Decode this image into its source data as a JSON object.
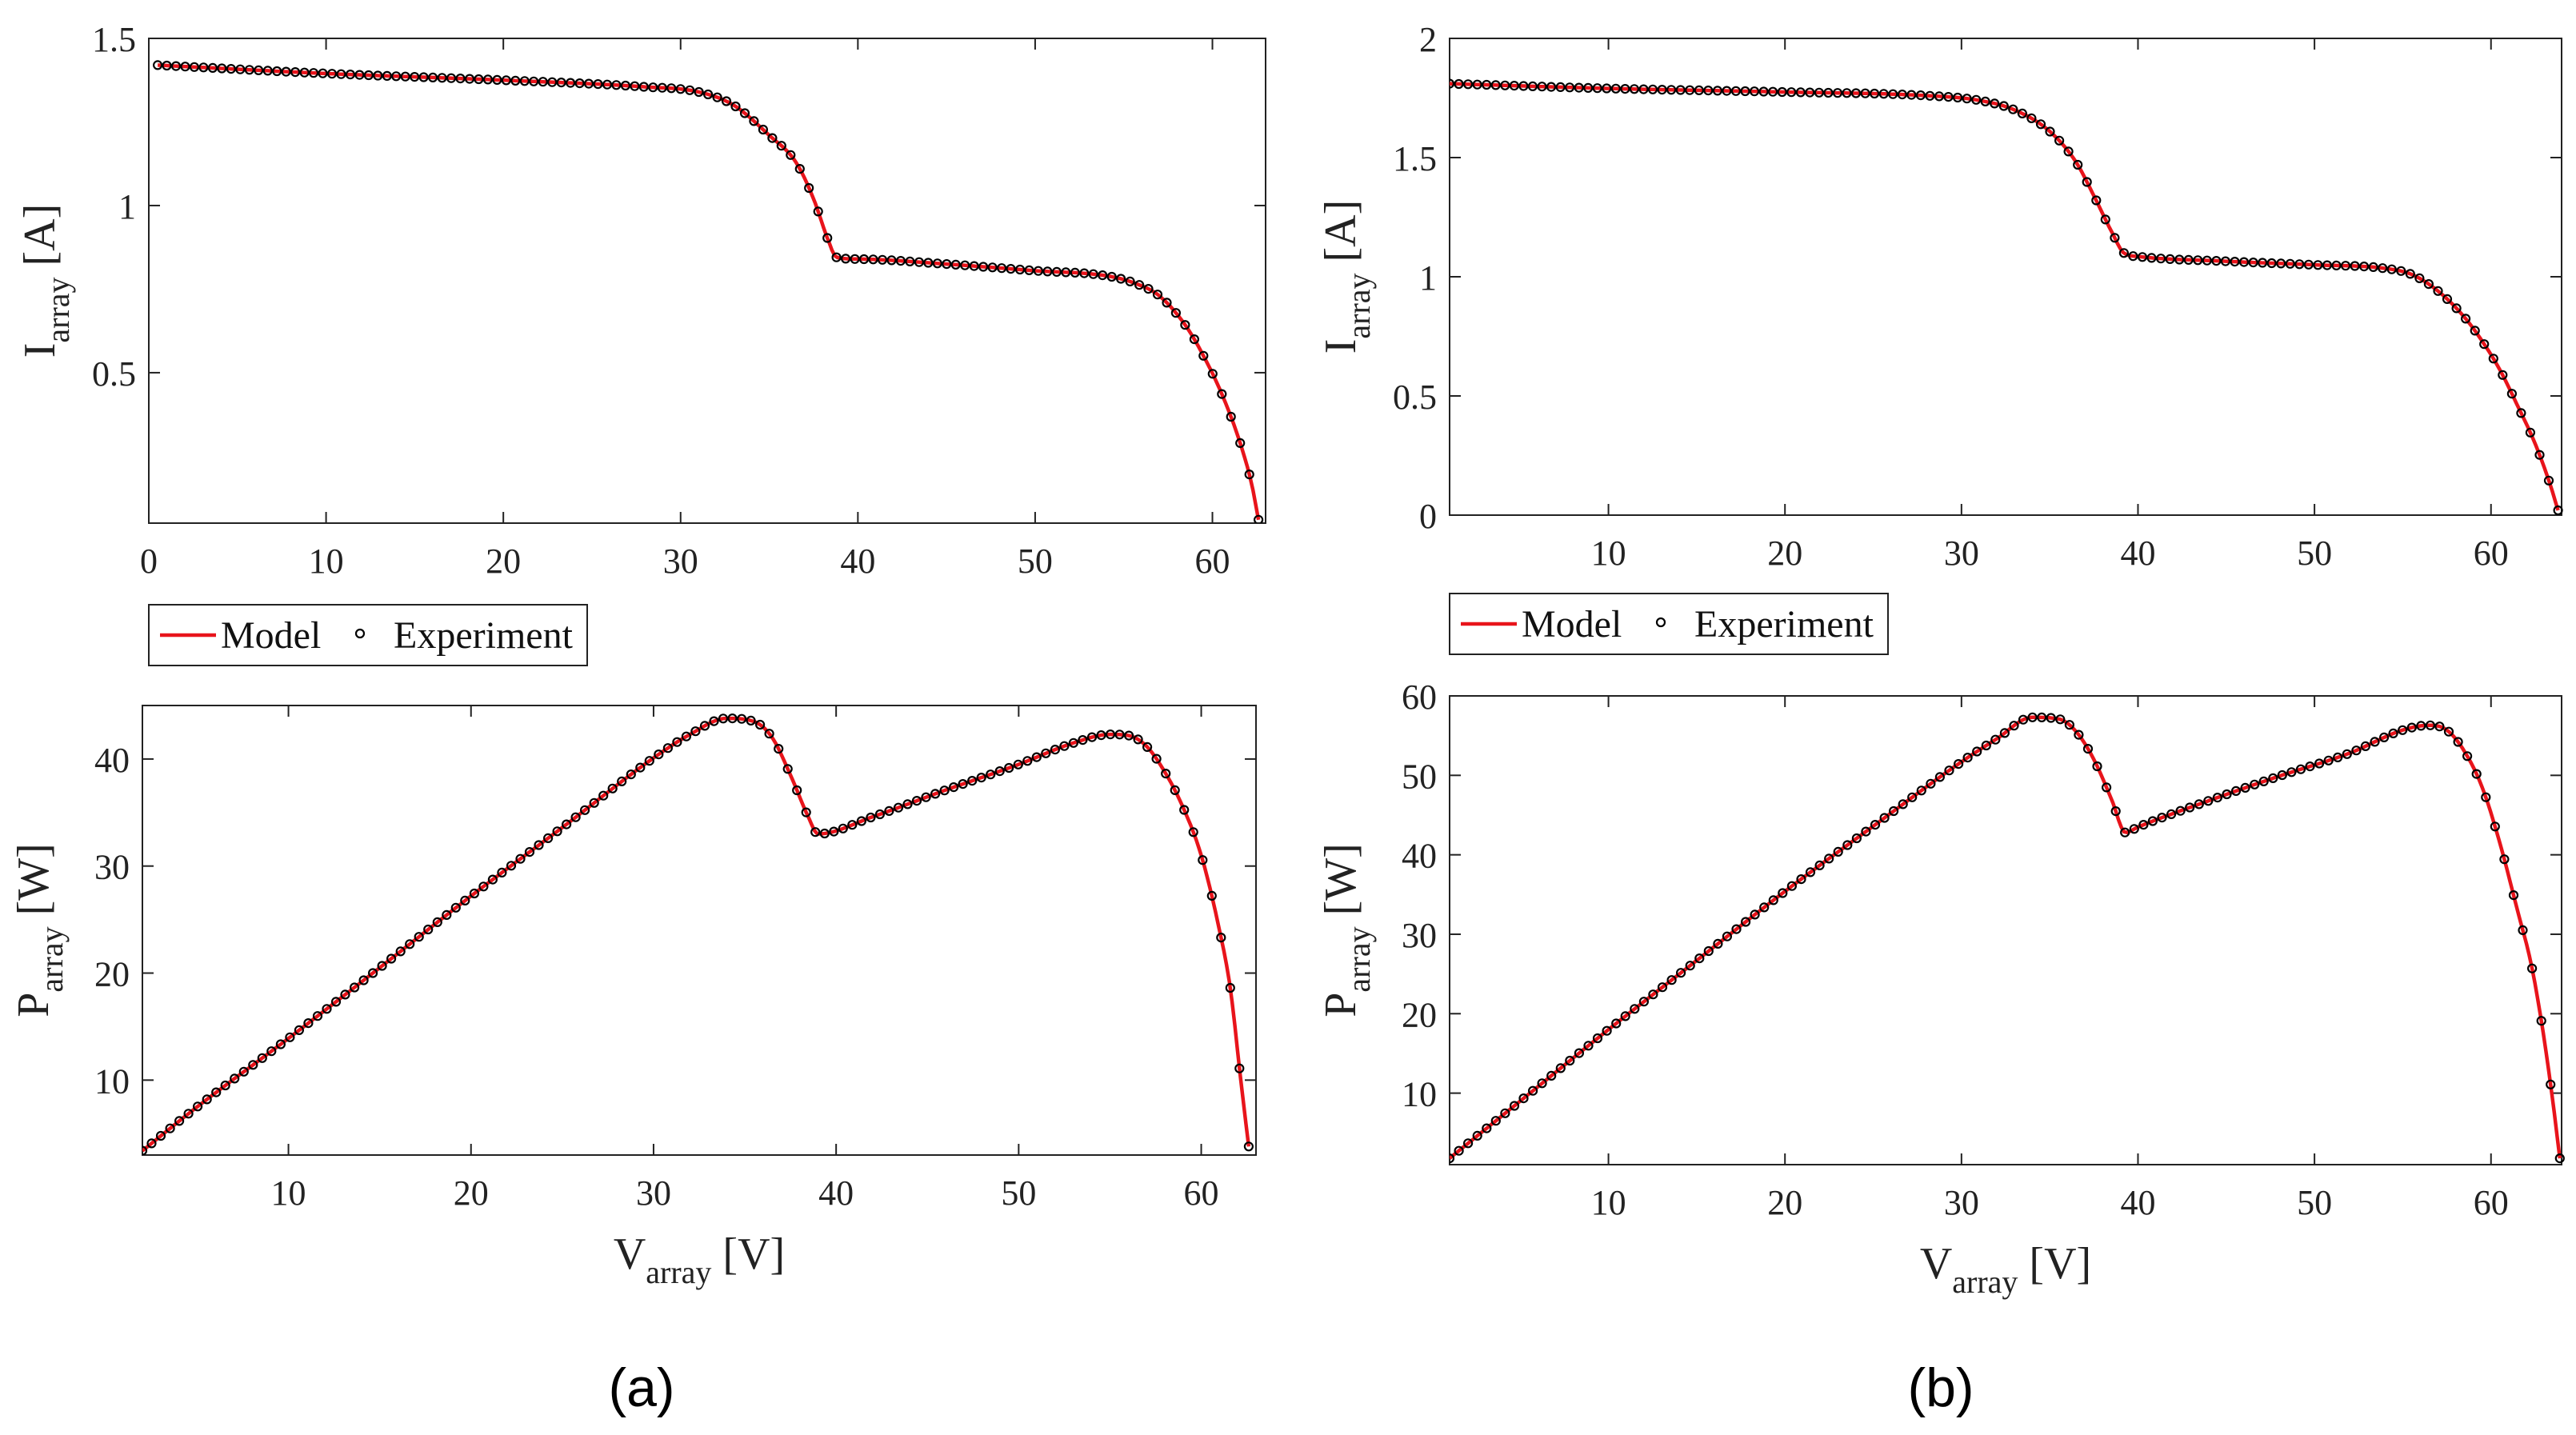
{
  "colors": {
    "model": "#e8141b",
    "experiment": "#000000",
    "axis": "#222222"
  },
  "panels": [
    {
      "id": "a",
      "label": "(a)"
    },
    {
      "id": "b",
      "label": "(b)"
    }
  ],
  "legend": {
    "model_label": "Model",
    "experiment_label": "Experiment"
  },
  "chart_data": [
    {
      "panel": "a",
      "type": "line",
      "title": "",
      "xlabel": "",
      "ylabel_main": "I",
      "ylabel_sub": "array",
      "ylabel_unit": "[A]",
      "xlim": [
        0,
        63
      ],
      "ylim": [
        0.05,
        1.5
      ],
      "xticks": [
        0,
        10,
        20,
        30,
        40,
        50,
        60
      ],
      "yticks": [
        0.5,
        1,
        1.5
      ],
      "xtick_labels": [
        "0",
        "10",
        "20",
        "30",
        "40",
        "50",
        "60"
      ],
      "ytick_labels": [
        "0.5",
        "1",
        "1.5"
      ],
      "legend": [
        "Model",
        "Experiment"
      ],
      "series": [
        {
          "name": "Model",
          "kind": "line",
          "points": [
            [
              0.5,
              1.42
            ],
            [
              10,
              1.395
            ],
            [
              20,
              1.375
            ],
            [
              28,
              1.355
            ],
            [
              31,
              1.34
            ],
            [
              33,
              1.3
            ],
            [
              35,
              1.21
            ],
            [
              36.5,
              1.13
            ],
            [
              37.5,
              1.02
            ],
            [
              38.3,
              0.9
            ],
            [
              38.8,
              0.845
            ],
            [
              40,
              0.84
            ],
            [
              45,
              0.825
            ],
            [
              50,
              0.805
            ],
            [
              54,
              0.79
            ],
            [
              55.5,
              0.77
            ],
            [
              57,
              0.73
            ],
            [
              58.5,
              0.64
            ],
            [
              59.5,
              0.55
            ],
            [
              60.5,
              0.44
            ],
            [
              61.5,
              0.3
            ],
            [
              62.2,
              0.17
            ],
            [
              62.6,
              0.06
            ]
          ]
        },
        {
          "name": "Experiment",
          "kind": "markers",
          "points": [
            [
              0.5,
              1.42
            ],
            [
              10,
              1.395
            ],
            [
              20,
              1.375
            ],
            [
              28,
              1.355
            ],
            [
              31,
              1.34
            ],
            [
              33,
              1.3
            ],
            [
              35,
              1.21
            ],
            [
              36.5,
              1.13
            ],
            [
              37.5,
              1.02
            ],
            [
              38.3,
              0.9
            ],
            [
              38.8,
              0.845
            ],
            [
              40,
              0.84
            ],
            [
              45,
              0.825
            ],
            [
              50,
              0.805
            ],
            [
              54,
              0.79
            ],
            [
              55.5,
              0.77
            ],
            [
              57,
              0.73
            ],
            [
              58.5,
              0.64
            ],
            [
              59.5,
              0.55
            ],
            [
              60.5,
              0.44
            ],
            [
              61.5,
              0.3
            ],
            [
              62.2,
              0.17
            ],
            [
              62.6,
              0.06
            ]
          ]
        }
      ]
    },
    {
      "panel": "a",
      "type": "line",
      "title": "",
      "xlabel_main": "V",
      "xlabel_sub": "array",
      "xlabel_unit": "[V]",
      "ylabel_main": "P",
      "ylabel_sub": "array",
      "ylabel_unit": "[W]",
      "xlim": [
        2,
        63
      ],
      "ylim": [
        3,
        45
      ],
      "xticks": [
        10,
        20,
        30,
        40,
        50,
        60
      ],
      "yticks": [
        10,
        20,
        30,
        40
      ],
      "xtick_labels": [
        "10",
        "20",
        "30",
        "40",
        "50",
        "60"
      ],
      "ytick_labels": [
        "10",
        "20",
        "30",
        "40"
      ],
      "series": [
        {
          "name": "Model",
          "kind": "line",
          "points": [
            [
              2,
              3.4
            ],
            [
              5,
              7.5
            ],
            [
              10,
              13.9
            ],
            [
              15,
              20.5
            ],
            [
              20,
              27.2
            ],
            [
              25,
              33.6
            ],
            [
              30,
              40.1
            ],
            [
              32,
              42.3
            ],
            [
              34,
              43.8
            ],
            [
              35.5,
              43.5
            ],
            [
              36.5,
              42
            ],
            [
              37.5,
              38.5
            ],
            [
              38.5,
              34.5
            ],
            [
              39,
              33
            ],
            [
              42,
              34.6
            ],
            [
              46,
              37.1
            ],
            [
              50,
              39.5
            ],
            [
              53,
              41.5
            ],
            [
              55,
              42.3
            ],
            [
              56,
              42.2
            ],
            [
              57,
              41.2
            ],
            [
              58,
              38.8
            ],
            [
              59,
              35.5
            ],
            [
              60,
              31
            ],
            [
              61,
              24
            ],
            [
              61.6,
              18.5
            ],
            [
              62.2,
              9.5
            ],
            [
              62.6,
              3.8
            ]
          ]
        },
        {
          "name": "Experiment",
          "kind": "markers",
          "points": [
            [
              2,
              3.4
            ],
            [
              5,
              7.5
            ],
            [
              10,
              13.9
            ],
            [
              15,
              20.5
            ],
            [
              20,
              27.2
            ],
            [
              25,
              33.6
            ],
            [
              30,
              40.1
            ],
            [
              32,
              42.3
            ],
            [
              34,
              43.8
            ],
            [
              35.5,
              43.5
            ],
            [
              36.5,
              42
            ],
            [
              37.5,
              38.5
            ],
            [
              38.5,
              34.5
            ],
            [
              39,
              33
            ],
            [
              42,
              34.6
            ],
            [
              46,
              37.1
            ],
            [
              50,
              39.5
            ],
            [
              53,
              41.5
            ],
            [
              55,
              42.3
            ],
            [
              56,
              42.2
            ],
            [
              57,
              41.2
            ],
            [
              58,
              38.8
            ],
            [
              59,
              35.5
            ],
            [
              60,
              31
            ],
            [
              61,
              24
            ],
            [
              61.6,
              18.5
            ],
            [
              62.2,
              9.5
            ],
            [
              62.6,
              3.8
            ]
          ]
        }
      ]
    },
    {
      "panel": "b",
      "type": "line",
      "title": "",
      "xlabel": "",
      "ylabel_main": "I",
      "ylabel_sub": "array",
      "ylabel_unit": "[A]",
      "xlim": [
        1,
        64
      ],
      "ylim": [
        0,
        2
      ],
      "xticks": [
        10,
        20,
        30,
        40,
        50,
        60
      ],
      "yticks": [
        0,
        0.5,
        1,
        1.5,
        2
      ],
      "xtick_labels": [
        "10",
        "20",
        "30",
        "40",
        "50",
        "60"
      ],
      "ytick_labels": [
        "0",
        "0.5",
        "1",
        "1.5",
        "2"
      ],
      "legend": [
        "Model",
        "Experiment"
      ],
      "series": [
        {
          "name": "Model",
          "kind": "line",
          "points": [
            [
              1,
              1.81
            ],
            [
              10,
              1.79
            ],
            [
              20,
              1.775
            ],
            [
              28,
              1.76
            ],
            [
              31,
              1.74
            ],
            [
              33,
              1.7
            ],
            [
              35,
              1.61
            ],
            [
              36.5,
              1.48
            ],
            [
              37.5,
              1.34
            ],
            [
              38.5,
              1.19
            ],
            [
              39.2,
              1.1
            ],
            [
              40,
              1.085
            ],
            [
              45,
              1.065
            ],
            [
              50,
              1.05
            ],
            [
              54,
              1.035
            ],
            [
              55.5,
              1.01
            ],
            [
              57,
              0.94
            ],
            [
              58.5,
              0.83
            ],
            [
              59.5,
              0.73
            ],
            [
              60.5,
              0.61
            ],
            [
              61.5,
              0.46
            ],
            [
              62.5,
              0.3
            ],
            [
              63.3,
              0.14
            ],
            [
              63.8,
              0.02
            ]
          ]
        },
        {
          "name": "Experiment",
          "kind": "markers",
          "points": [
            [
              1,
              1.81
            ],
            [
              10,
              1.79
            ],
            [
              20,
              1.775
            ],
            [
              28,
              1.76
            ],
            [
              31,
              1.74
            ],
            [
              33,
              1.7
            ],
            [
              35,
              1.61
            ],
            [
              36.5,
              1.48
            ],
            [
              37.5,
              1.34
            ],
            [
              38.5,
              1.19
            ],
            [
              39.2,
              1.1
            ],
            [
              40,
              1.085
            ],
            [
              45,
              1.065
            ],
            [
              50,
              1.05
            ],
            [
              54,
              1.035
            ],
            [
              55.5,
              1.01
            ],
            [
              57,
              0.94
            ],
            [
              58.5,
              0.83
            ],
            [
              59.5,
              0.73
            ],
            [
              60.5,
              0.61
            ],
            [
              61.5,
              0.46
            ],
            [
              62.5,
              0.3
            ],
            [
              63.3,
              0.14
            ],
            [
              63.8,
              0.02
            ]
          ]
        }
      ]
    },
    {
      "panel": "b",
      "type": "line",
      "title": "",
      "xlabel_main": "V",
      "xlabel_sub": "array",
      "xlabel_unit": "[V]",
      "ylabel_main": "P",
      "ylabel_sub": "array",
      "ylabel_unit": "[W]",
      "xlim": [
        1,
        64
      ],
      "ylim": [
        1,
        60
      ],
      "xticks": [
        10,
        20,
        30,
        40,
        50,
        60
      ],
      "yticks": [
        10,
        20,
        30,
        40,
        50,
        60
      ],
      "xtick_labels": [
        "10",
        "20",
        "30",
        "40",
        "50",
        "60"
      ],
      "ytick_labels": [
        "10",
        "20",
        "30",
        "40",
        "50",
        "60"
      ],
      "series": [
        {
          "name": "Model",
          "kind": "line",
          "points": [
            [
              1,
              1.8
            ],
            [
              5,
              9
            ],
            [
              10,
              18
            ],
            [
              15,
              26.7
            ],
            [
              20,
              35.4
            ],
            [
              25,
              43.6
            ],
            [
              30,
              51.7
            ],
            [
              32,
              54.6
            ],
            [
              34,
              57.3
            ],
            [
              35.5,
              57.1
            ],
            [
              36.5,
              55.5
            ],
            [
              37.5,
              52
            ],
            [
              38.5,
              47
            ],
            [
              39.3,
              42.8
            ],
            [
              40,
              43.5
            ],
            [
              44,
              46.8
            ],
            [
              48,
              49.9
            ],
            [
              52,
              52.8
            ],
            [
              55,
              55.7
            ],
            [
              56.5,
              56.3
            ],
            [
              57.5,
              55.7
            ],
            [
              58.5,
              53
            ],
            [
              59.5,
              48.5
            ],
            [
              60.5,
              41.5
            ],
            [
              61.5,
              33
            ],
            [
              62.3,
              26
            ],
            [
              63,
              17
            ],
            [
              63.5,
              9
            ],
            [
              63.9,
              1.8
            ]
          ]
        },
        {
          "name": "Experiment",
          "kind": "markers",
          "points": [
            [
              1,
              1.8
            ],
            [
              5,
              9
            ],
            [
              10,
              18
            ],
            [
              15,
              26.7
            ],
            [
              20,
              35.4
            ],
            [
              25,
              43.6
            ],
            [
              30,
              51.7
            ],
            [
              32,
              54.6
            ],
            [
              34,
              57.3
            ],
            [
              35.5,
              57.1
            ],
            [
              36.5,
              55.5
            ],
            [
              37.5,
              52
            ],
            [
              38.5,
              47
            ],
            [
              39.3,
              42.8
            ],
            [
              40,
              43.5
            ],
            [
              44,
              46.8
            ],
            [
              48,
              49.9
            ],
            [
              52,
              52.8
            ],
            [
              55,
              55.7
            ],
            [
              56.5,
              56.3
            ],
            [
              57.5,
              55.7
            ],
            [
              58.5,
              53
            ],
            [
              59.5,
              48.5
            ],
            [
              60.5,
              41.5
            ],
            [
              61.5,
              33
            ],
            [
              62.3,
              26
            ],
            [
              63,
              17
            ],
            [
              63.5,
              9
            ],
            [
              63.9,
              1.8
            ]
          ]
        }
      ]
    }
  ]
}
